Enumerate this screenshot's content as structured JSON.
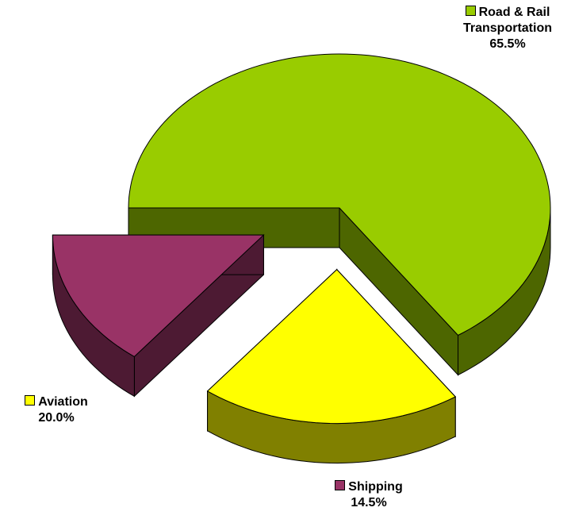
{
  "chart_data": {
    "type": "pie3d",
    "categories": [
      "Road & Rail Transportation",
      "Aviation",
      "Shipping"
    ],
    "values": [
      65.5,
      20.0,
      14.5
    ],
    "value_labels": [
      "65.5%",
      "20.0%",
      "14.5%"
    ],
    "colors": [
      "#99cc00",
      "#ffff00",
      "#993366"
    ],
    "side_colors": [
      "#4d6600",
      "#808000",
      "#4d1a33"
    ]
  }
}
